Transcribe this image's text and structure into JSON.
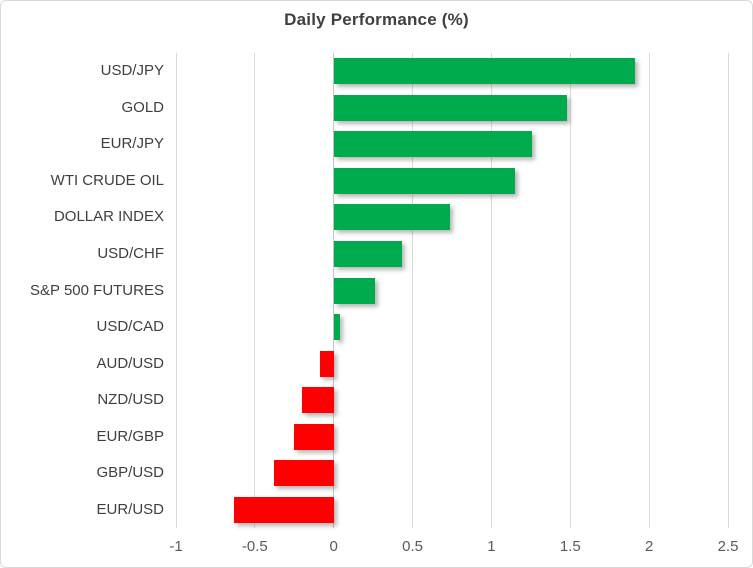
{
  "title": "Daily Performance (%)",
  "colors": {
    "positive_bar": "#00AB4E",
    "negative_bar": "#FF0000",
    "gridline": "#D9D9D9",
    "zero_axis_line": "#C6C6C6",
    "title_text": "#404040",
    "category_text": "#3F3F3F",
    "tick_text": "#595959",
    "background": "#FFFFFF",
    "chart_border": "#D9D9D9"
  },
  "chart_data": {
    "type": "bar",
    "orientation": "horizontal",
    "title": "Daily Performance (%)",
    "categories": [
      "USD/JPY",
      "GOLD",
      "EUR/JPY",
      "WTI CRUDE OIL",
      "DOLLAR INDEX",
      "USD/CHF",
      "S&P 500 FUTURES",
      "USD/CAD",
      "AUD/USD",
      "NZD/USD",
      "EUR/GBP",
      "GBP/USD",
      "EUR/USD"
    ],
    "values": [
      1.91,
      1.48,
      1.26,
      1.15,
      0.74,
      0.43,
      0.26,
      0.04,
      -0.09,
      -0.2,
      -0.25,
      -0.38,
      -0.63
    ],
    "xlabel": "",
    "ylabel": "",
    "xlim": [
      -1,
      2.5
    ],
    "xticks": [
      -1,
      -0.5,
      0,
      0.5,
      1,
      1.5,
      2,
      2.5
    ],
    "xtick_labels": [
      "-1",
      "-0.5",
      "0",
      "0.5",
      "1",
      "1.5",
      "2",
      "2.5"
    ],
    "grid": true,
    "legend": false
  }
}
